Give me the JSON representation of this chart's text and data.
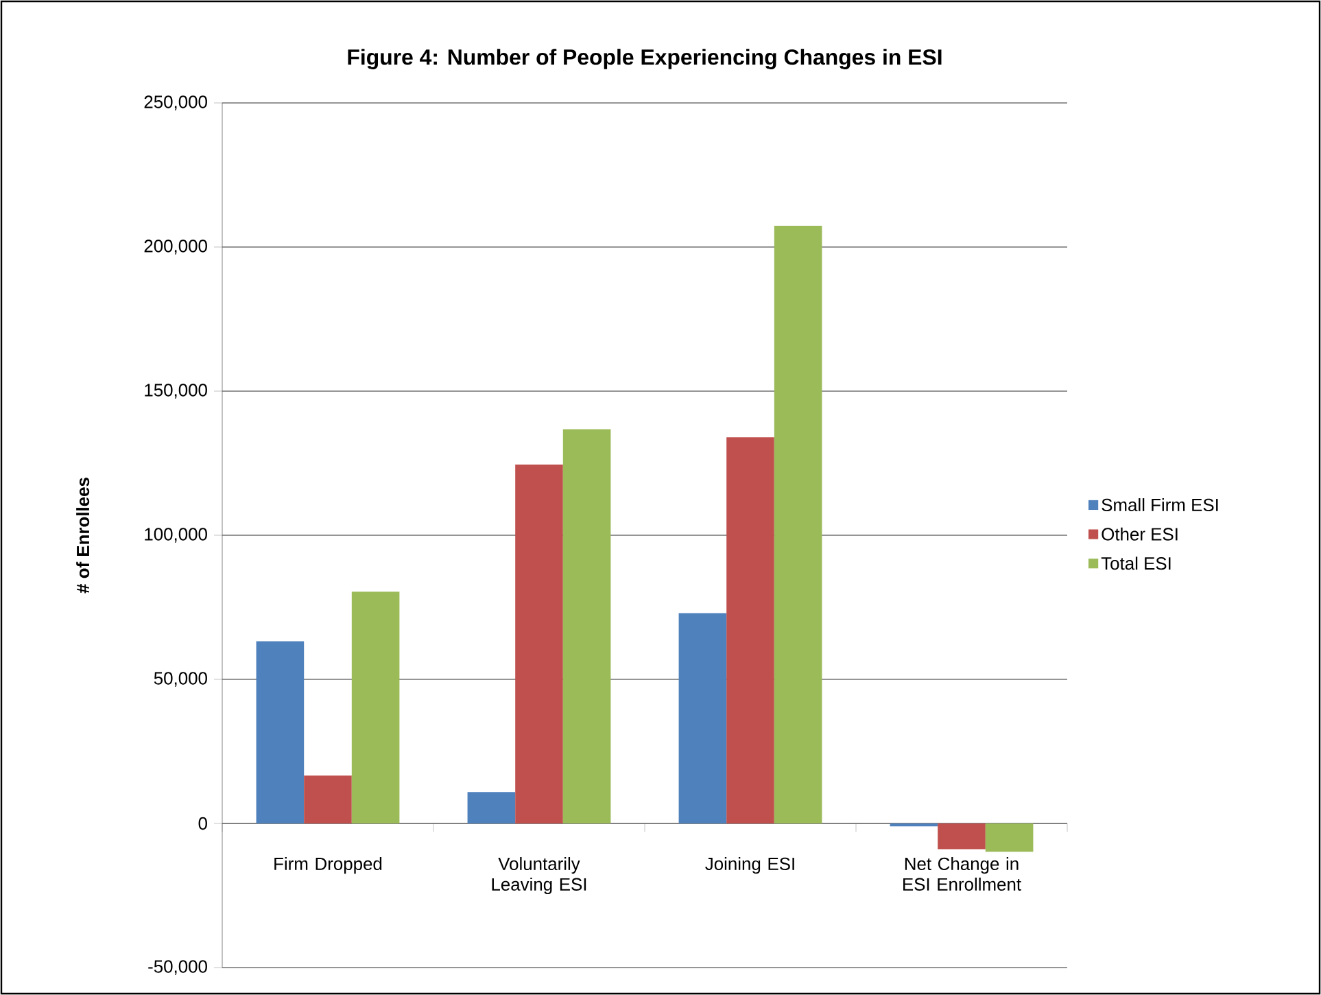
{
  "chart_data": {
    "type": "bar",
    "title": "Figure 4: Number of People Experiencing Changes in ESI",
    "ylabel": "# of Enrollees",
    "categories": [
      "Firm Dropped",
      "Voluntarily Leaving ESI",
      "Joining ESI",
      "Net Change in ESI Enrollment"
    ],
    "series": [
      {
        "name": "Small Firm ESI",
        "color": "#4f81bd",
        "values": [
          63200,
          10900,
          73000,
          -1000
        ]
      },
      {
        "name": "Other ESI",
        "color": "#c0504d",
        "values": [
          16600,
          124500,
          134000,
          -8900
        ]
      },
      {
        "name": "Total ESI",
        "color": "#9bbb59",
        "values": [
          80400,
          136800,
          207400,
          -9800
        ]
      }
    ],
    "ylim": [
      -50000,
      250000
    ],
    "yticks": [
      {
        "value": -50000,
        "label": "-50,000"
      },
      0,
      {
        "value": 50000,
        "label": "50,000"
      },
      {
        "value": 100000,
        "label": "100,000"
      },
      {
        "value": 150000,
        "label": "150,000"
      },
      {
        "value": 200000,
        "label": "200,000"
      },
      {
        "value": 250000,
        "label": "250,000"
      }
    ],
    "grid": "y",
    "legend": "right"
  }
}
